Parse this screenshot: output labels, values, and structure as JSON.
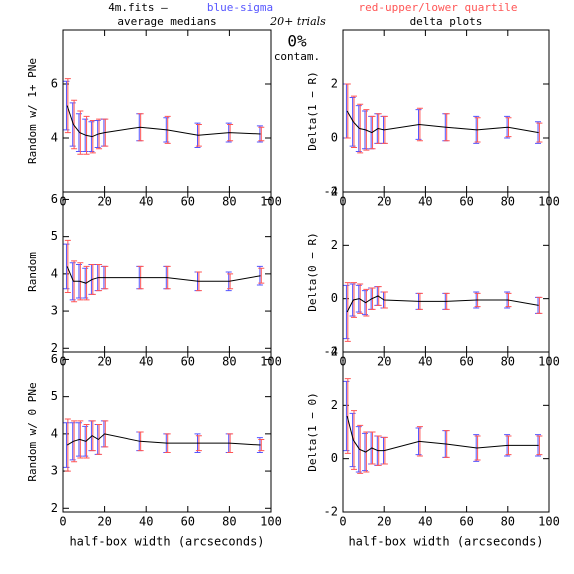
{
  "header": {
    "file": "4m.fits –",
    "sigma_note": "blue-sigma",
    "quartile_note": "red-upper/lower quartile",
    "trials": "20+ trials",
    "contam_pct": "0%",
    "contam": "contam."
  },
  "chart_data": [
    {
      "type": "line",
      "title": "average medians",
      "ylabel": "Random w/ 1+ PNe",
      "x": [
        2,
        5,
        8,
        11,
        14,
        17,
        20,
        37,
        50,
        65,
        80,
        95
      ],
      "xlim": [
        0,
        100
      ],
      "xticks": [
        0,
        20,
        40,
        60,
        80,
        100
      ],
      "ylim": [
        2,
        8
      ],
      "yticks": [
        4,
        6
      ],
      "sigma_color": "#5555ff",
      "quartile_color": "#ff5555",
      "series": [
        {
          "color": "#000000",
          "values": [
            5.2,
            4.5,
            4.2,
            4.1,
            4.05,
            4.15,
            4.2,
            4.4,
            4.3,
            4.1,
            4.2,
            4.15
          ],
          "sigma": [
            0.9,
            0.8,
            0.7,
            0.6,
            0.55,
            0.5,
            0.5,
            0.5,
            0.45,
            0.45,
            0.35,
            0.3
          ],
          "quartile": [
            1.0,
            0.9,
            0.8,
            0.7,
            0.6,
            0.55,
            0.5,
            0.5,
            0.5,
            0.4,
            0.3,
            0.25
          ]
        }
      ]
    },
    {
      "type": "line",
      "title": "delta plots",
      "ylabel": "Delta(1 − R)",
      "x": [
        2,
        5,
        8,
        11,
        14,
        17,
        20,
        37,
        50,
        65,
        80,
        95
      ],
      "xlim": [
        0,
        100
      ],
      "xticks": [
        0,
        20,
        40,
        60,
        80,
        100
      ],
      "ylim": [
        -2,
        4
      ],
      "yticks": [
        -2,
        0,
        2
      ],
      "sigma_color": "#5555ff",
      "quartile_color": "#ff5555",
      "series": [
        {
          "color": "#000000",
          "values": [
            1.0,
            0.6,
            0.35,
            0.3,
            0.2,
            0.35,
            0.3,
            0.5,
            0.4,
            0.3,
            0.4,
            0.2
          ],
          "sigma": [
            1.0,
            0.9,
            0.85,
            0.7,
            0.6,
            0.55,
            0.5,
            0.55,
            0.5,
            0.5,
            0.4,
            0.4
          ],
          "quartile": [
            1.0,
            0.95,
            0.9,
            0.75,
            0.6,
            0.55,
            0.5,
            0.6,
            0.5,
            0.45,
            0.35,
            0.35
          ]
        }
      ]
    },
    {
      "type": "line",
      "ylabel": "Random",
      "x": [
        2,
        5,
        8,
        11,
        14,
        17,
        20,
        37,
        50,
        65,
        80,
        95
      ],
      "xlim": [
        0,
        100
      ],
      "xticks": [
        0,
        20,
        40,
        60,
        80,
        100
      ],
      "ylim": [
        1.9,
        6.2
      ],
      "yticks": [
        2,
        3,
        4,
        5,
        6
      ],
      "sigma_color": "#5555ff",
      "quartile_color": "#ff5555",
      "series": [
        {
          "color": "#000000",
          "values": [
            4.2,
            3.8,
            3.8,
            3.75,
            3.85,
            3.9,
            3.9,
            3.9,
            3.9,
            3.8,
            3.8,
            3.95
          ],
          "sigma": [
            0.6,
            0.5,
            0.45,
            0.4,
            0.4,
            0.35,
            0.3,
            0.3,
            0.3,
            0.25,
            0.25,
            0.25
          ],
          "quartile": [
            0.7,
            0.55,
            0.5,
            0.45,
            0.4,
            0.35,
            0.3,
            0.3,
            0.3,
            0.25,
            0.2,
            0.2
          ]
        }
      ]
    },
    {
      "type": "line",
      "ylabel": "Delta(0 − R)",
      "x": [
        2,
        5,
        8,
        11,
        14,
        17,
        20,
        37,
        50,
        65,
        80,
        95
      ],
      "xlim": [
        0,
        100
      ],
      "xticks": [
        0,
        20,
        40,
        60,
        80,
        100
      ],
      "ylim": [
        -2,
        4
      ],
      "yticks": [
        -2,
        0,
        2,
        4
      ],
      "sigma_color": "#5555ff",
      "quartile_color": "#ff5555",
      "series": [
        {
          "color": "#000000",
          "values": [
            -0.5,
            -0.05,
            0.0,
            -0.15,
            0.0,
            0.1,
            -0.05,
            -0.1,
            -0.1,
            -0.05,
            -0.05,
            -0.25
          ],
          "sigma": [
            1.0,
            0.6,
            0.5,
            0.45,
            0.4,
            0.35,
            0.3,
            0.3,
            0.3,
            0.3,
            0.3,
            0.3
          ],
          "quartile": [
            1.1,
            0.65,
            0.55,
            0.5,
            0.4,
            0.35,
            0.3,
            0.3,
            0.3,
            0.25,
            0.25,
            0.3
          ]
        }
      ]
    },
    {
      "type": "line",
      "ylabel": "Random w/ 0 PNe",
      "xlabel": "half-box width (arcseconds)",
      "x": [
        2,
        5,
        8,
        11,
        14,
        17,
        20,
        37,
        50,
        65,
        80,
        95
      ],
      "xlim": [
        0,
        100
      ],
      "xticks": [
        0,
        20,
        40,
        60,
        80,
        100
      ],
      "ylim": [
        1.9,
        6.2
      ],
      "yticks": [
        2,
        3,
        4,
        5,
        6
      ],
      "sigma_color": "#5555ff",
      "quartile_color": "#ff5555",
      "series": [
        {
          "color": "#000000",
          "values": [
            3.7,
            3.8,
            3.85,
            3.8,
            3.95,
            3.85,
            4.0,
            3.8,
            3.75,
            3.75,
            3.75,
            3.7
          ],
          "sigma": [
            0.6,
            0.5,
            0.45,
            0.4,
            0.4,
            0.4,
            0.35,
            0.25,
            0.25,
            0.25,
            0.25,
            0.2
          ],
          "quartile": [
            0.7,
            0.55,
            0.5,
            0.45,
            0.4,
            0.4,
            0.35,
            0.25,
            0.25,
            0.2,
            0.25,
            0.15
          ]
        }
      ]
    },
    {
      "type": "line",
      "ylabel": "Delta(1 − 0)",
      "xlabel": "half-box width (arcseconds)",
      "x": [
        2,
        5,
        8,
        11,
        14,
        17,
        20,
        37,
        50,
        65,
        80,
        95
      ],
      "xlim": [
        0,
        100
      ],
      "xticks": [
        0,
        20,
        40,
        60,
        80,
        100
      ],
      "ylim": [
        -2,
        4
      ],
      "yticks": [
        -2,
        0,
        2,
        4
      ],
      "sigma_color": "#5555ff",
      "quartile_color": "#ff5555",
      "series": [
        {
          "color": "#000000",
          "values": [
            1.6,
            0.7,
            0.35,
            0.25,
            0.4,
            0.3,
            0.3,
            0.65,
            0.55,
            0.4,
            0.5,
            0.5
          ],
          "sigma": [
            1.3,
            1.0,
            0.85,
            0.7,
            0.6,
            0.55,
            0.5,
            0.5,
            0.5,
            0.5,
            0.4,
            0.4
          ],
          "quartile": [
            1.4,
            1.1,
            0.9,
            0.75,
            0.6,
            0.55,
            0.5,
            0.55,
            0.5,
            0.45,
            0.35,
            0.35
          ]
        }
      ]
    }
  ]
}
